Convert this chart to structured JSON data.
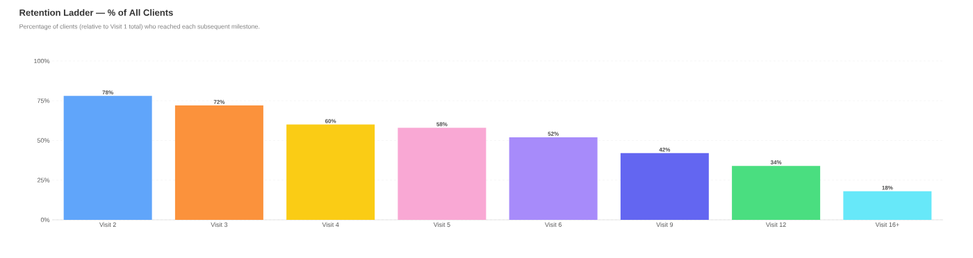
{
  "chart_data": {
    "type": "bar",
    "title": "Retention Ladder — % of All Clients",
    "subtitle": "Percentage of clients (relative to Visit 1 total) who reached each subsequent milestone.",
    "categories": [
      "Visit 2",
      "Visit 3",
      "Visit 4",
      "Visit 5",
      "Visit 6",
      "Visit 9",
      "Visit 12",
      "Visit 16+"
    ],
    "values": [
      78,
      72,
      60,
      58,
      52,
      42,
      34,
      18
    ],
    "value_labels": [
      "78%",
      "72%",
      "60%",
      "58%",
      "52%",
      "42%",
      "34%",
      "18%"
    ],
    "colors": [
      "#60a5fa",
      "#fb923c",
      "#facc15",
      "#f9a8d4",
      "#a78bfa",
      "#6366f1",
      "#4ade80",
      "#67e8f9"
    ],
    "ylim": [
      0,
      100
    ],
    "yticks": [
      {
        "value": 0,
        "label": "0%"
      },
      {
        "value": 25,
        "label": "25%"
      },
      {
        "value": 50,
        "label": "50%"
      },
      {
        "value": 75,
        "label": "75%"
      },
      {
        "value": 100,
        "label": "100%"
      }
    ],
    "grid": "y"
  }
}
